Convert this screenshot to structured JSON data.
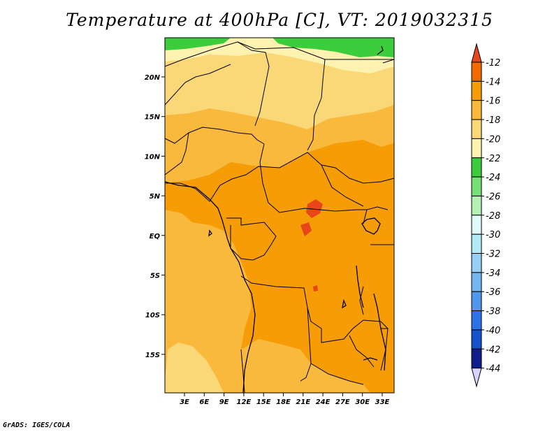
{
  "title": "Temperature at 400hPa [C], VT: 2019032315",
  "credit": "GrADS: IGES/COLA",
  "map": {
    "lat_labels": [
      "20N",
      "15N",
      "10N",
      "5N",
      "EQ",
      "5S",
      "10S",
      "15S"
    ],
    "lon_labels": [
      "3E",
      "6E",
      "9E",
      "12E",
      "15E",
      "18E",
      "21E",
      "24E",
      "27E",
      "30E",
      "33E"
    ]
  },
  "colorbar": {
    "labels": [
      "-12",
      "-14",
      "-16",
      "-18",
      "-20",
      "-22",
      "-24",
      "-26",
      "-28",
      "-30",
      "-32",
      "-34",
      "-36",
      "-38",
      "-40",
      "-42",
      "-44"
    ],
    "colors": [
      "#e8451a",
      "#f36a00",
      "#f59c07",
      "#f9b93d",
      "#fbd877",
      "#fdf2b0",
      "#3ccd3c",
      "#74e075",
      "#b5f0b3",
      "#e0fbf9",
      "#b4eaf7",
      "#96d0f6",
      "#73b6f2",
      "#4f98ec",
      "#2b73e6",
      "#1552cc",
      "#0f1e8a",
      "#d4d4fb"
    ]
  }
}
